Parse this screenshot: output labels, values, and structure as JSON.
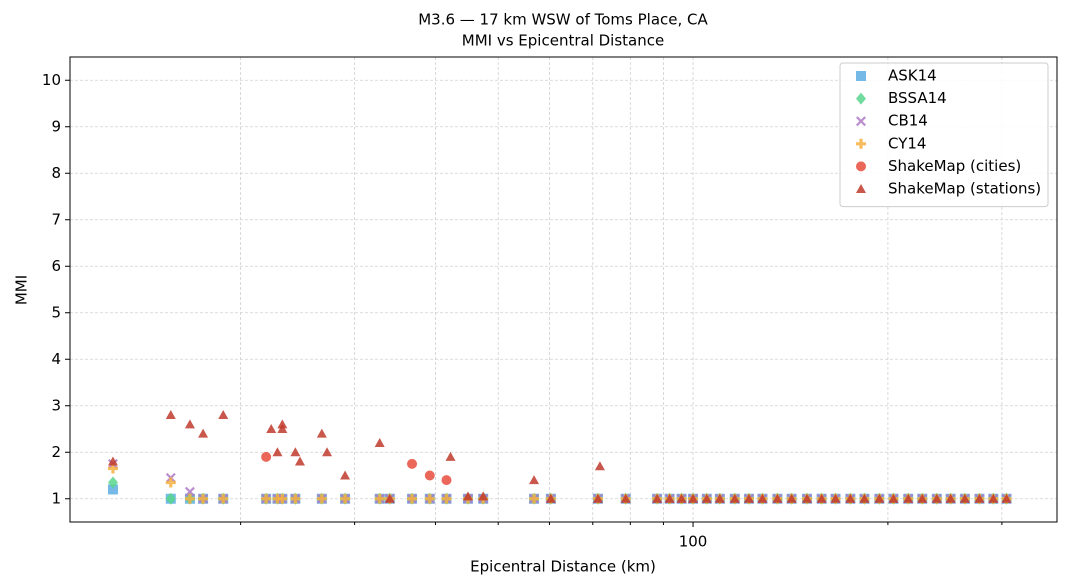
{
  "chart_data": {
    "type": "scatter",
    "title": "M3.6 — 17 km WSW of Toms Place, CA",
    "subtitle": "MMI vs Epicentral Distance",
    "x_label": "Epicentral Distance (km)",
    "y_label": "MMI",
    "xscale": "log",
    "xlim": [
      10.9,
      365
    ],
    "xticks": [
      100
    ],
    "ylim": [
      0.5,
      10.5
    ],
    "yticks": [
      1,
      2,
      3,
      4,
      5,
      6,
      7,
      8,
      9,
      10
    ],
    "grid": true,
    "legend": "upper right",
    "series": [
      {
        "name": "ASK14",
        "color": "#5dade2",
        "marker": "square",
        "x": [
          12.7,
          15.6,
          16.7,
          17.5,
          18.8,
          21.9,
          22.8,
          23.2,
          24.3,
          26.7,
          29.0,
          32.8,
          34.0,
          36.8,
          39.2,
          41.6,
          44.9,
          47.4,
          56.8,
          60.3,
          71.3,
          78.7,
          88,
          92,
          96,
          100,
          105,
          110,
          116,
          122,
          128,
          135,
          142,
          150,
          158,
          166,
          175,
          184,
          194,
          204,
          215,
          226,
          238,
          250,
          263,
          277,
          291,
          305
        ],
        "values": [
          1.2,
          1,
          1,
          1,
          1,
          1,
          1,
          1,
          1,
          1,
          1,
          1,
          1,
          1,
          1,
          1,
          1,
          1,
          1,
          1,
          1,
          1,
          1,
          1,
          1,
          1,
          1,
          1,
          1,
          1,
          1,
          1,
          1,
          1,
          1,
          1,
          1,
          1,
          1,
          1,
          1,
          1,
          1,
          1,
          1,
          1,
          1,
          1
        ]
      },
      {
        "name": "BSSA14",
        "color": "#58d68d",
        "marker": "diamond",
        "x": [
          12.7,
          15.6,
          16.7,
          17.5,
          18.8,
          21.9,
          22.8,
          23.2,
          24.3,
          26.7,
          29.0,
          32.8,
          34.0,
          36.8,
          39.2,
          41.6,
          44.9,
          47.4,
          56.8,
          60.3,
          71.3,
          78.7,
          88,
          92,
          96,
          100,
          105,
          110,
          116,
          122,
          128,
          135,
          142,
          150,
          158,
          166,
          175,
          184,
          194,
          204,
          215,
          226,
          238,
          250,
          263,
          277,
          291,
          305
        ],
        "values": [
          1.35,
          1,
          1,
          1,
          1,
          1,
          1,
          1,
          1,
          1,
          1,
          1,
          1,
          1,
          1,
          1,
          1,
          1,
          1,
          1,
          1,
          1,
          1,
          1,
          1,
          1,
          1,
          1,
          1,
          1,
          1,
          1,
          1,
          1,
          1,
          1,
          1,
          1,
          1,
          1,
          1,
          1,
          1,
          1,
          1,
          1,
          1,
          1
        ]
      },
      {
        "name": "CB14",
        "color": "#af7ac5",
        "marker": "x",
        "x": [
          12.7,
          15.6,
          16.7,
          17.5,
          18.8,
          21.9,
          22.8,
          23.2,
          24.3,
          26.7,
          29.0,
          32.8,
          34.0,
          36.8,
          39.2,
          41.6,
          44.9,
          47.4,
          56.8,
          60.3,
          71.3,
          78.7,
          88,
          92,
          96,
          100,
          105,
          110,
          116,
          122,
          128,
          135,
          142,
          150,
          158,
          166,
          175,
          184,
          194,
          204,
          215,
          226,
          238,
          250,
          263,
          277,
          291,
          305
        ],
        "values": [
          1.75,
          1.45,
          1.15,
          1,
          1,
          1,
          1,
          1,
          1,
          1,
          1,
          1,
          1,
          1,
          1,
          1,
          1,
          1,
          1,
          1,
          1,
          1,
          1,
          1,
          1,
          1,
          1,
          1,
          1,
          1,
          1,
          1,
          1,
          1,
          1,
          1,
          1,
          1,
          1,
          1,
          1,
          1,
          1,
          1,
          1,
          1,
          1,
          1
        ]
      },
      {
        "name": "CY14",
        "color": "#f5b041",
        "marker": "plus",
        "x": [
          12.7,
          15.6,
          16.7,
          17.5,
          18.8,
          21.9,
          22.8,
          23.2,
          24.3,
          26.7,
          29.0,
          32.8,
          34.0,
          36.8,
          39.2,
          41.6,
          44.9,
          47.4,
          56.8,
          60.3,
          71.3,
          78.7,
          88,
          92,
          96,
          100,
          105,
          110,
          116,
          122,
          128,
          135,
          142,
          150,
          158,
          166,
          175,
          184,
          194,
          204,
          215,
          226,
          238,
          250,
          263,
          277,
          291,
          305
        ],
        "values": [
          1.65,
          1.35,
          1,
          1,
          1,
          1,
          1,
          1,
          1,
          1,
          1,
          1,
          1,
          1,
          1,
          1,
          1,
          1,
          1,
          1,
          1,
          1,
          1,
          1,
          1,
          1,
          1,
          1,
          1,
          1,
          1,
          1,
          1,
          1,
          1,
          1,
          1,
          1,
          1,
          1,
          1,
          1,
          1,
          1,
          1,
          1,
          1,
          1
        ]
      },
      {
        "name": "ShakeMap (cities)",
        "color": "#e74c3c",
        "marker": "circle",
        "x": [
          21.9,
          36.8,
          39.2,
          41.6
        ],
        "values": [
          1.9,
          1.75,
          1.5,
          1.4
        ]
      },
      {
        "name": "ShakeMap (stations)",
        "color": "#c0392b",
        "marker": "triangle",
        "x": [
          12.7,
          15.6,
          16.7,
          17.5,
          18.8,
          22.3,
          22.8,
          23.2,
          23.2,
          24.3,
          24.7,
          26.7,
          27.2,
          29.0,
          32.8,
          34.0,
          42.2,
          44.9,
          47.4,
          56.8,
          60.3,
          71.3,
          71.8,
          78.7,
          88,
          92,
          96,
          100,
          105,
          110,
          116,
          122,
          128,
          135,
          142,
          150,
          158,
          166,
          175,
          184,
          194,
          204,
          215,
          226,
          238,
          250,
          263,
          277,
          291,
          305
        ],
        "values": [
          1.8,
          2.8,
          2.6,
          2.4,
          2.8,
          2.5,
          2.0,
          2.6,
          2.5,
          2.0,
          1.8,
          2.4,
          2.0,
          1.5,
          2.2,
          1.0,
          1.9,
          1.05,
          1.05,
          1.4,
          1.0,
          1.0,
          1.7,
          1.0,
          1,
          1,
          1,
          1,
          1,
          1,
          1,
          1,
          1,
          1,
          1,
          1,
          1,
          1,
          1,
          1,
          1,
          1,
          1,
          1,
          1,
          1,
          1,
          1,
          1,
          1
        ]
      }
    ]
  }
}
